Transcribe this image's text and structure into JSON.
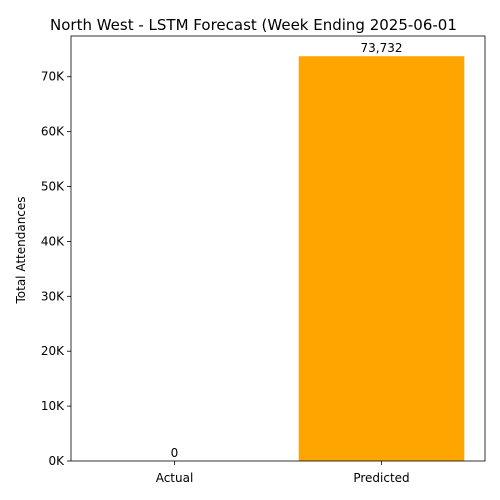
{
  "chart_data": {
    "type": "bar",
    "title": "North West - LSTM Forecast (Week Ending 2025-06-01",
    "xlabel": "",
    "ylabel": "Total Attendances",
    "categories": [
      "Actual",
      "Predicted"
    ],
    "values": [
      0,
      73732
    ],
    "value_labels": [
      "0",
      "73,732"
    ],
    "ylim": [
      0,
      77420
    ],
    "yticks": [
      0,
      10000,
      20000,
      30000,
      40000,
      50000,
      60000,
      70000
    ],
    "ytick_labels": [
      "0K",
      "10K",
      "20K",
      "30K",
      "40K",
      "50K",
      "60K",
      "70K"
    ],
    "grid": false,
    "legend": "none",
    "colors": {
      "bar": "#FFA500",
      "axis": "#000000"
    }
  }
}
